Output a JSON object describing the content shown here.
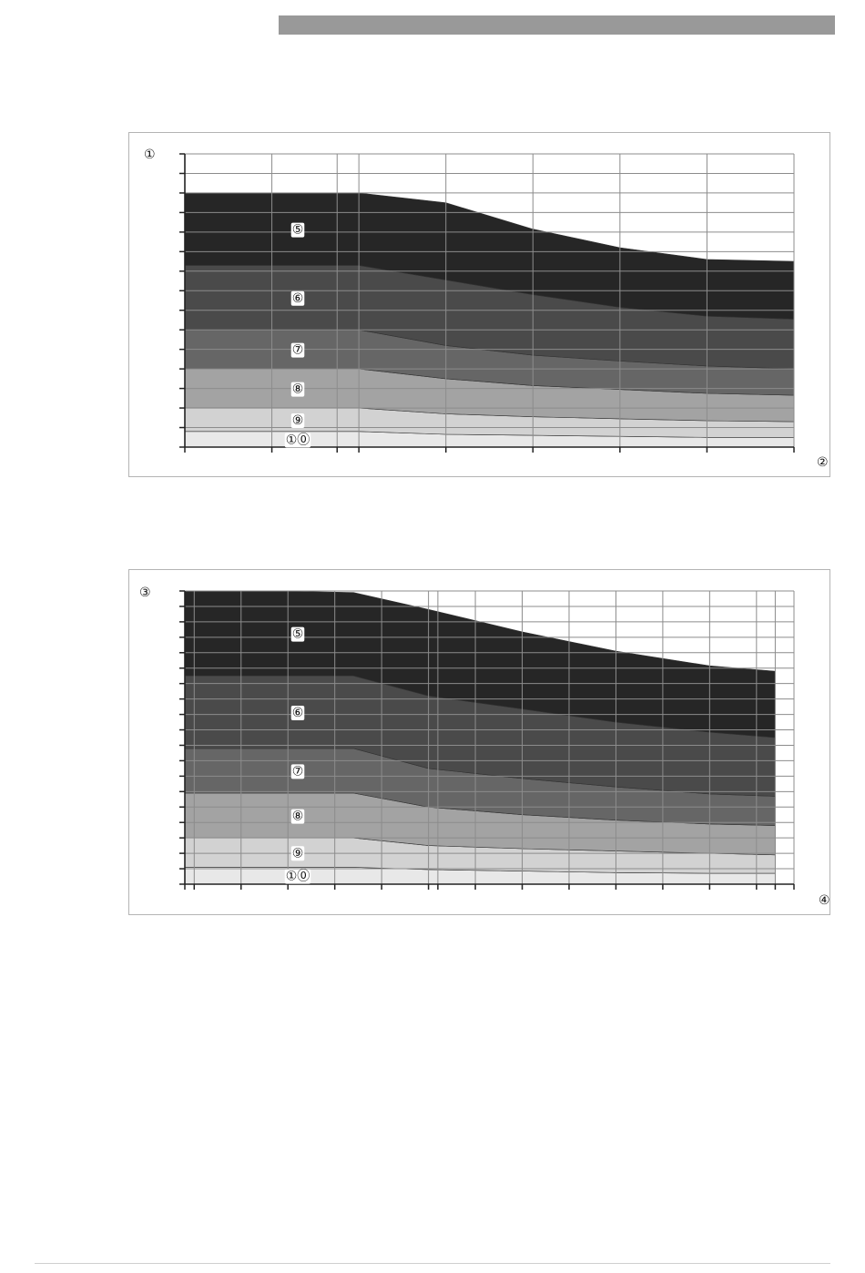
{
  "page": {
    "header_bar_color": "#999999"
  },
  "chart_data": [
    {
      "type": "area",
      "stacked": true,
      "title": "",
      "ylabel": "①",
      "xlabel": "②",
      "xlim": [
        0,
        7
      ],
      "ylim": [
        0,
        15
      ],
      "x": [
        0,
        1,
        2,
        3,
        4,
        5,
        6,
        7
      ],
      "x_ticks": [
        0,
        1,
        1.75,
        2,
        3,
        4,
        5,
        6,
        7
      ],
      "y_ticks": [
        0,
        1,
        2,
        3,
        4,
        5,
        6,
        7,
        8,
        9,
        10,
        11,
        12,
        13,
        14,
        15
      ],
      "grid": true,
      "series": [
        {
          "name": "①⓪",
          "color": "#e8e8e8",
          "values": [
            0.8,
            0.8,
            0.8,
            0.65,
            0.6,
            0.55,
            0.5,
            0.5
          ]
        },
        {
          "name": "⑨",
          "color": "#d2d2d2",
          "values": [
            1.2,
            1.2,
            1.2,
            1.05,
            0.95,
            0.9,
            0.85,
            0.8
          ]
        },
        {
          "name": "⑧",
          "color": "#a3a3a3",
          "values": [
            2.0,
            2.0,
            2.0,
            1.8,
            1.6,
            1.5,
            1.4,
            1.35
          ]
        },
        {
          "name": "⑦",
          "color": "#666666",
          "values": [
            2.0,
            2.0,
            2.0,
            1.7,
            1.55,
            1.45,
            1.4,
            1.35
          ]
        },
        {
          "name": "⑥",
          "color": "#4a4a4a",
          "values": [
            3.3,
            3.3,
            3.3,
            3.35,
            3.1,
            2.75,
            2.55,
            2.55
          ]
        },
        {
          "name": "⑤",
          "color": "#262626",
          "values": [
            3.7,
            3.7,
            3.7,
            3.95,
            3.35,
            3.05,
            2.9,
            2.95
          ]
        }
      ]
    },
    {
      "type": "area",
      "stacked": true,
      "title": "",
      "ylabel": "③",
      "xlabel": "④",
      "xlim": [
        0,
        13
      ],
      "ylim": [
        0,
        19
      ],
      "x": [
        0,
        1,
        2,
        3.6,
        5.2,
        7.2,
        9.2,
        11.2,
        12.6
      ],
      "x_ticks": [
        0,
        0.2,
        1.2,
        2.2,
        3.2,
        4.2,
        5.2,
        5.4,
        6.2,
        7.2,
        8.2,
        9.2,
        10.2,
        11.2,
        12.2,
        12.6,
        13
      ],
      "y_ticks": [
        0,
        1,
        2,
        3,
        4,
        5,
        6,
        7,
        8,
        9,
        10,
        11,
        12,
        13,
        14,
        15,
        16,
        17,
        18,
        19
      ],
      "grid": true,
      "series": [
        {
          "name": "①⓪",
          "color": "#e8e8e8",
          "values": [
            1.1,
            1.1,
            1.1,
            1.1,
            0.95,
            0.85,
            0.75,
            0.7,
            0.7
          ]
        },
        {
          "name": "⑨",
          "color": "#d2d2d2",
          "values": [
            1.9,
            1.9,
            1.9,
            1.9,
            1.55,
            1.45,
            1.4,
            1.3,
            1.2
          ]
        },
        {
          "name": "⑧",
          "color": "#a3a3a3",
          "values": [
            2.9,
            2.9,
            2.9,
            2.9,
            2.5,
            2.2,
            2.0,
            1.9,
            1.9
          ]
        },
        {
          "name": "⑦",
          "color": "#666666",
          "values": [
            2.9,
            2.9,
            2.9,
            2.9,
            2.5,
            2.35,
            2.15,
            1.95,
            1.9
          ]
        },
        {
          "name": "⑥",
          "color": "#4a4a4a",
          "values": [
            4.7,
            4.7,
            4.7,
            4.7,
            4.7,
            4.5,
            4.2,
            4.0,
            3.8
          ]
        },
        {
          "name": "⑤",
          "color": "#262626",
          "values": [
            5.5,
            5.5,
            5.5,
            5.4,
            5.6,
            5.0,
            4.6,
            4.3,
            4.3
          ]
        }
      ]
    }
  ]
}
